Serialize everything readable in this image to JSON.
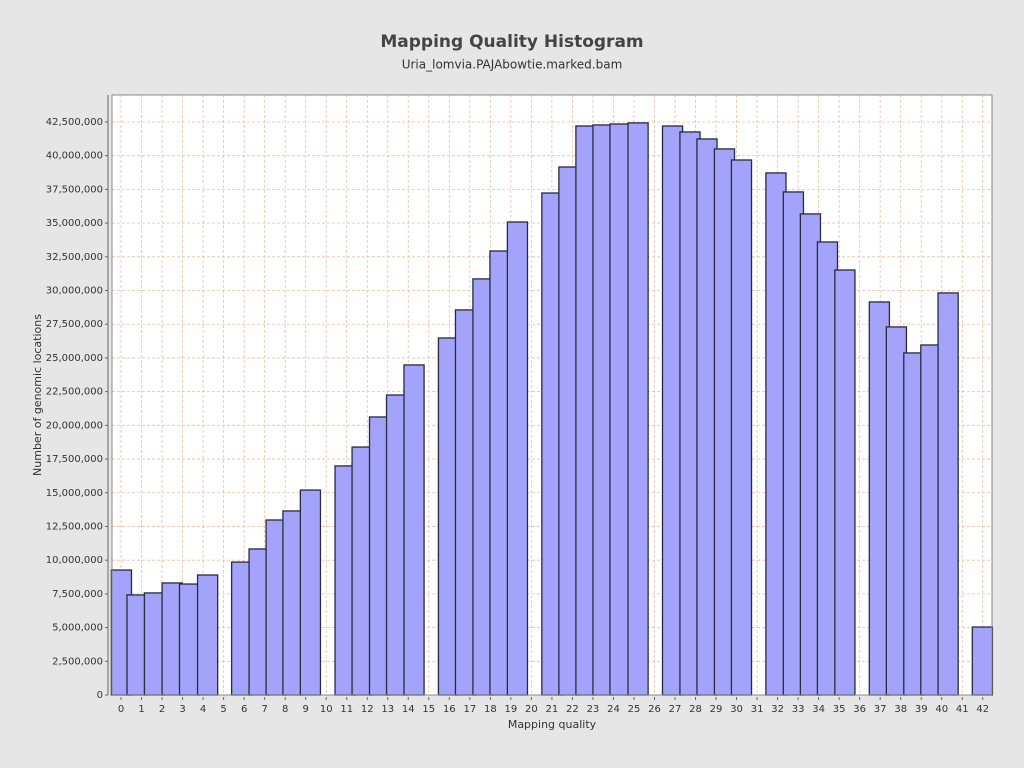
{
  "chart_data": {
    "type": "bar",
    "title": "Mapping Quality Histogram",
    "subtitle": "Uria_lomvia.PAJAbowtie.marked.bam",
    "x_label": "Mapping quality",
    "y_label": "Number of genomic locations",
    "x": [
      0.02,
      0.78,
      1.63,
      2.49,
      3.34,
      4.22,
      5.88,
      6.73,
      7.56,
      8.38,
      9.23,
      10.92,
      11.75,
      12.6,
      13.43,
      14.28,
      15.96,
      16.79,
      17.64,
      18.47,
      19.32,
      21.0,
      21.83,
      22.66,
      23.49,
      24.32,
      25.2,
      26.88,
      27.73,
      28.56,
      29.41,
      30.24,
      31.92,
      32.77,
      33.6,
      34.43,
      35.28,
      36.96,
      37.79,
      38.64,
      39.47,
      40.31,
      41.98
    ],
    "values": [
      9270000,
      7420000,
      7570000,
      8310000,
      8230000,
      8900000,
      9860000,
      10830000,
      12980000,
      13650000,
      15200000,
      16990000,
      18390000,
      20620000,
      22250000,
      24480000,
      26480000,
      28560000,
      30860000,
      32930000,
      35080000,
      37230000,
      39160000,
      42200000,
      42280000,
      42350000,
      42430000,
      42200000,
      41760000,
      41240000,
      40500000,
      39680000,
      38720000,
      37310000,
      35680000,
      33600000,
      31520000,
      29150000,
      27300000,
      25370000,
      25960000,
      29820000,
      5040000
    ],
    "color": "#a3a3fc",
    "xlim": [
      -0.44,
      42.45
    ],
    "xticks": [
      0,
      1,
      2,
      3,
      4,
      5,
      6,
      7,
      8,
      9,
      10,
      11,
      12,
      13,
      14,
      15,
      16,
      17,
      18,
      19,
      20,
      21,
      22,
      23,
      24,
      25,
      26,
      27,
      28,
      29,
      30,
      31,
      32,
      33,
      34,
      35,
      36,
      37,
      38,
      39,
      40,
      41,
      42
    ],
    "ylim": [
      0,
      44500000
    ],
    "yticks": [
      0,
      {
        "value": 2500000,
        "label": "2,500,000"
      },
      {
        "value": 5000000,
        "label": "5,000,000"
      },
      {
        "value": 7500000,
        "label": "7,500,000"
      },
      {
        "value": 10000000,
        "label": "10,000,000"
      },
      {
        "value": 12500000,
        "label": "12,500,000"
      },
      {
        "value": 15000000,
        "label": "15,000,000"
      },
      {
        "value": 17500000,
        "label": "17,500,000"
      },
      {
        "value": 20000000,
        "label": "20,000,000"
      },
      {
        "value": 22500000,
        "label": "22,500,000"
      },
      {
        "value": 25000000,
        "label": "25,000,000"
      },
      {
        "value": 27500000,
        "label": "27,500,000"
      },
      {
        "value": 30000000,
        "label": "30,000,000"
      },
      {
        "value": 32500000,
        "label": "32,500,000"
      },
      {
        "value": 35000000,
        "label": "35,000,000"
      },
      {
        "value": 37500000,
        "label": "37,500,000"
      },
      {
        "value": 40000000,
        "label": "40,000,000"
      },
      {
        "value": 42500000,
        "label": "42,500,000"
      }
    ],
    "grid": true
  }
}
